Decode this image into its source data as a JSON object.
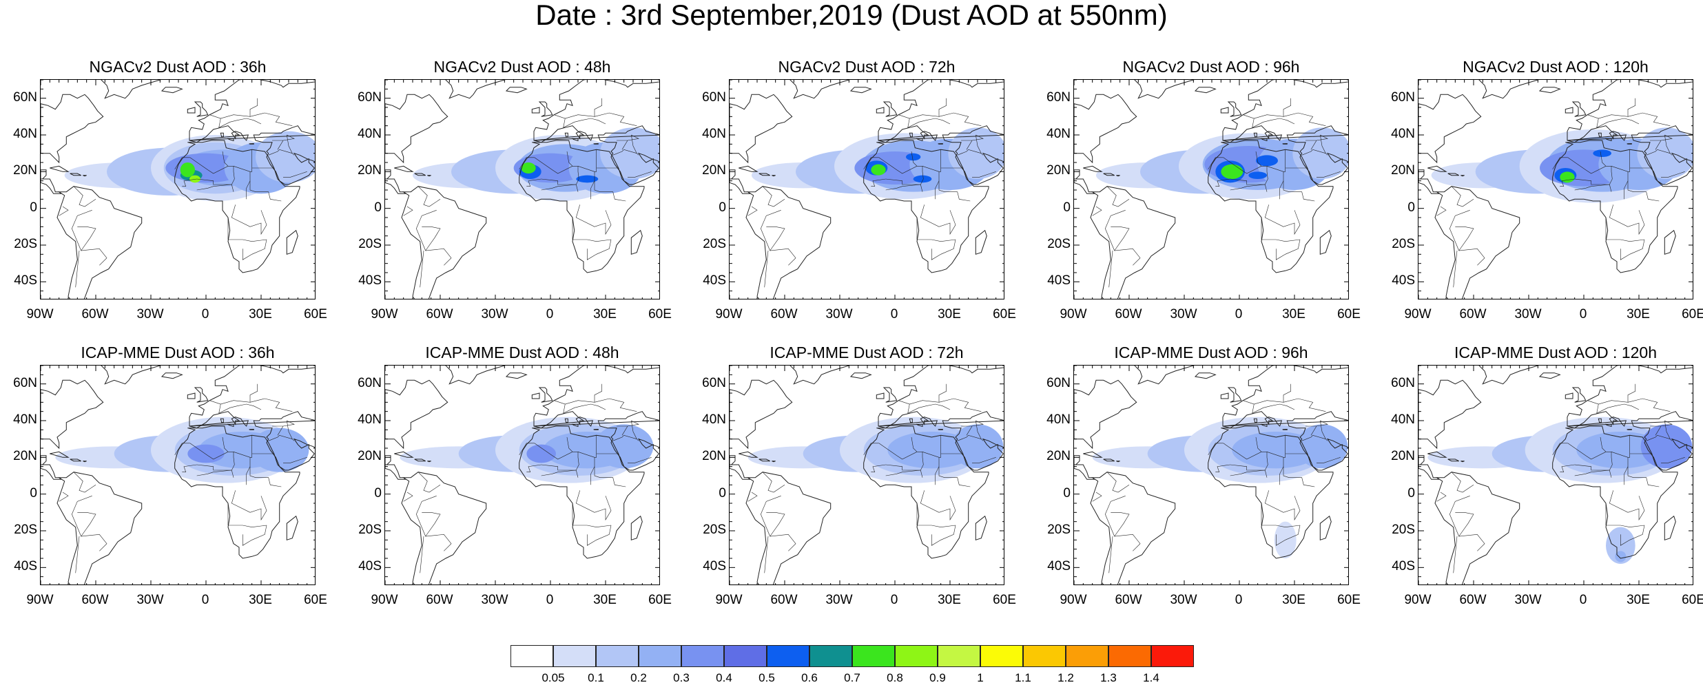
{
  "title": "Date : 3rd September,2019 (Dust AOD at 550nm)",
  "axes": {
    "lon_ticks": [
      "90W",
      "60W",
      "30W",
      "0",
      "30E",
      "60E"
    ],
    "lat_ticks": [
      "60N",
      "40N",
      "20N",
      "0",
      "20S",
      "40S"
    ],
    "lon_range": [
      -90,
      60
    ],
    "lat_range": [
      -50,
      70
    ]
  },
  "panels": [
    {
      "title": "NGACv2 Dust AOD : 36h",
      "model": "NGACv2",
      "lead": "36h"
    },
    {
      "title": "NGACv2 Dust AOD : 48h",
      "model": "NGACv2",
      "lead": "48h"
    },
    {
      "title": "NGACv2 Dust AOD : 72h",
      "model": "NGACv2",
      "lead": "72h"
    },
    {
      "title": "NGACv2 Dust AOD : 96h",
      "model": "NGACv2",
      "lead": "96h"
    },
    {
      "title": "NGACv2 Dust AOD : 120h",
      "model": "NGACv2",
      "lead": "120h"
    },
    {
      "title": "ICAP-MME Dust AOD : 36h",
      "model": "ICAP-MME",
      "lead": "36h"
    },
    {
      "title": "ICAP-MME Dust AOD : 48h",
      "model": "ICAP-MME",
      "lead": "48h"
    },
    {
      "title": "ICAP-MME Dust AOD : 72h",
      "model": "ICAP-MME",
      "lead": "72h"
    },
    {
      "title": "ICAP-MME Dust AOD : 96h",
      "model": "ICAP-MME",
      "lead": "96h"
    },
    {
      "title": "ICAP-MME Dust AOD : 120h",
      "model": "ICAP-MME",
      "lead": "120h"
    }
  ],
  "colorbar": {
    "labels": [
      "0.05",
      "0.1",
      "0.2",
      "0.3",
      "0.4",
      "0.5",
      "0.6",
      "0.7",
      "0.8",
      "0.9",
      "1",
      "1.1",
      "1.2",
      "1.3",
      "1.4"
    ],
    "colors": [
      "#ffffff",
      "#d4def8",
      "#b2c6f6",
      "#93b1f4",
      "#7892f1",
      "#5f6ee6",
      "#0d5ff0",
      "#0f9090",
      "#3be51e",
      "#8ef516",
      "#c4f742",
      "#fbfb06",
      "#fbc802",
      "#fb9e06",
      "#fb6a02",
      "#fb1a0a"
    ]
  },
  "colors": {
    "land_outline": "#222222",
    "background": "#ffffff"
  }
}
